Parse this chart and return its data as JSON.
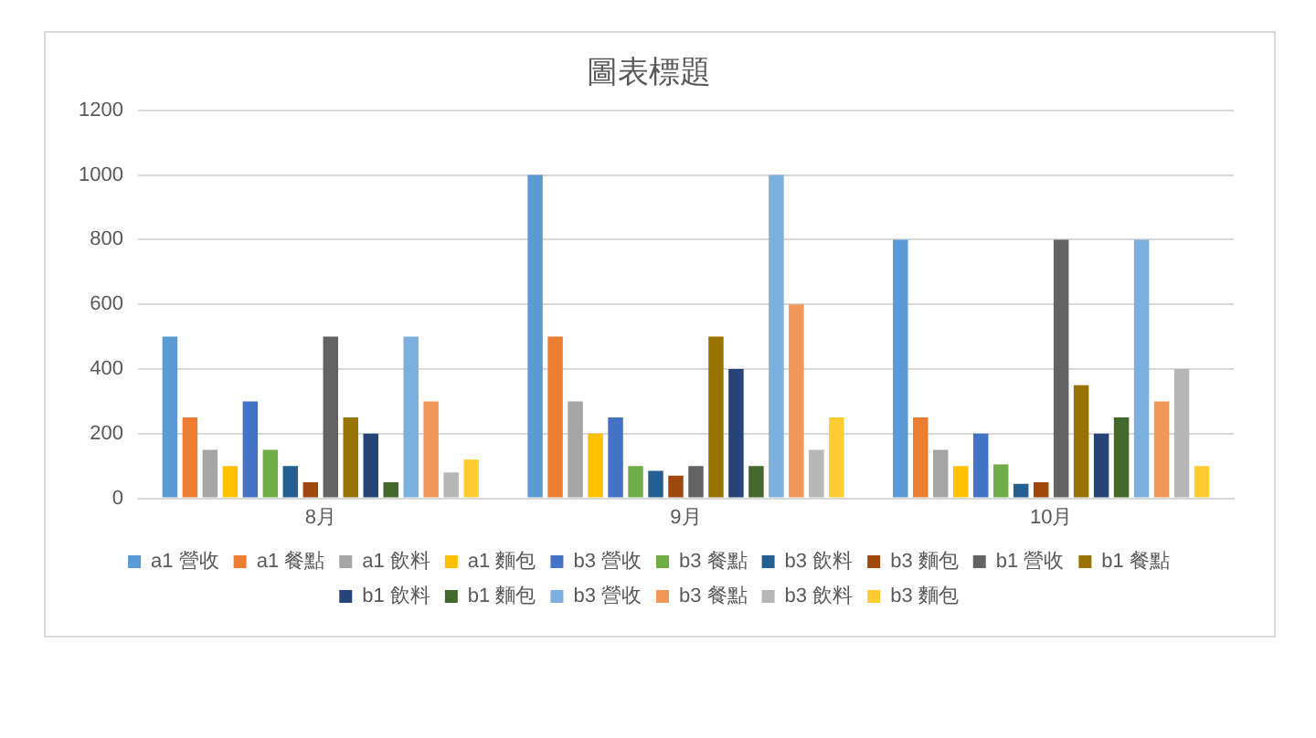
{
  "chart_data": {
    "type": "bar",
    "title": "圖表標題",
    "categories": [
      "8月",
      "9月",
      "10月"
    ],
    "series": [
      {
        "name": "a1 營收",
        "color": "#5b9bd5",
        "values": [
          500,
          1000,
          800
        ]
      },
      {
        "name": "a1 餐點",
        "color": "#ed7d31",
        "values": [
          250,
          500,
          250
        ]
      },
      {
        "name": "a1 飲料",
        "color": "#a5a5a5",
        "values": [
          150,
          300,
          150
        ]
      },
      {
        "name": "a1 麵包",
        "color": "#ffc000",
        "values": [
          100,
          200,
          100
        ]
      },
      {
        "name": "b3 營收",
        "color": "#4472c4",
        "values": [
          300,
          250,
          200
        ]
      },
      {
        "name": "b3 餐點",
        "color": "#70ad47",
        "values": [
          150,
          100,
          105
        ]
      },
      {
        "name": "b3 飲料",
        "color": "#255e91",
        "values": [
          100,
          85,
          45
        ]
      },
      {
        "name": "b3 麵包",
        "color": "#9e480e",
        "values": [
          50,
          70,
          50
        ]
      },
      {
        "name": "b1 營收",
        "color": "#636363",
        "values": [
          500,
          100,
          800
        ]
      },
      {
        "name": "b1 餐點",
        "color": "#997300",
        "values": [
          250,
          500,
          350
        ]
      },
      {
        "name": "b1 飲料",
        "color": "#264478",
        "values": [
          200,
          400,
          200
        ]
      },
      {
        "name": "b1 麵包",
        "color": "#43682b",
        "values": [
          50,
          100,
          250
        ]
      },
      {
        "name": "b3 營收",
        "color": "#7cafdd",
        "values": [
          500,
          1000,
          800
        ]
      },
      {
        "name": "b3 餐點",
        "color": "#f1975a",
        "values": [
          300,
          600,
          300
        ]
      },
      {
        "name": "b3 飲料",
        "color": "#b7b7b7",
        "values": [
          80,
          150,
          400
        ]
      },
      {
        "name": "b3 麵包",
        "color": "#ffcd33",
        "values": [
          120,
          250,
          100
        ]
      }
    ],
    "ylim": [
      0,
      1200
    ],
    "yticks": [
      0,
      200,
      400,
      600,
      800,
      1000,
      1200
    ],
    "grid": "y",
    "legend": "bottom"
  }
}
